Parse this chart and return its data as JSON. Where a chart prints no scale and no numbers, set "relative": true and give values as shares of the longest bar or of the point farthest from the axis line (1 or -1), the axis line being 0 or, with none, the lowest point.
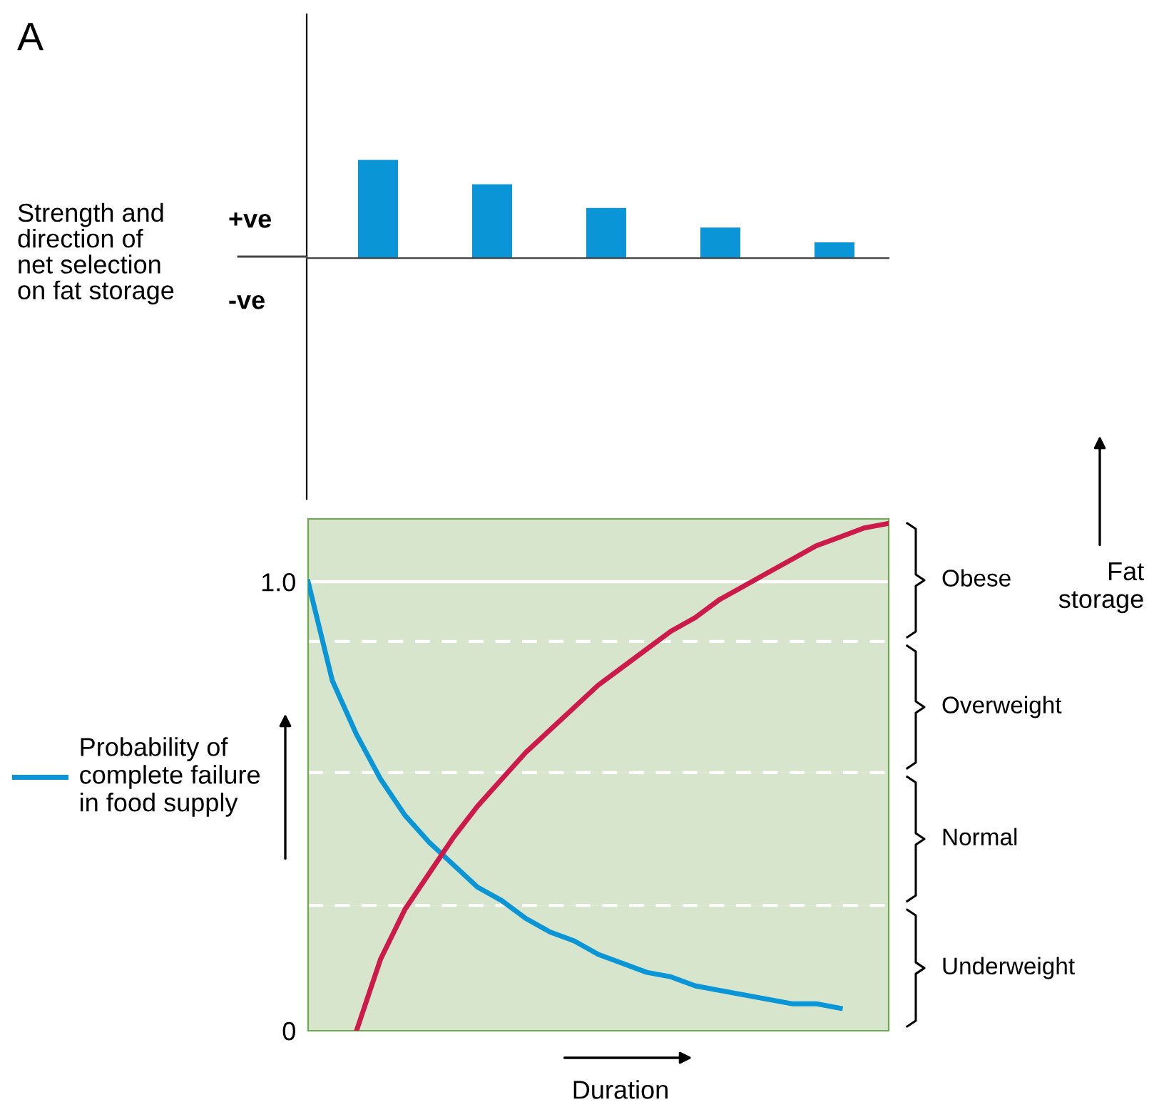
{
  "chart_data": [
    {
      "type": "bar",
      "relative": true,
      "ylabel": "Strength and\ndirection of\nnet selection\non fat storage",
      "annotations": [
        "A",
        "+ve",
        "-ve"
      ],
      "categories": [
        null,
        null,
        null,
        null,
        null
      ],
      "values": [
        1,
        0.75,
        0.51,
        0.31,
        0.16
      ],
      "color": "#0a96d6",
      "grid": false
    },
    {
      "type": "line",
      "xlabel": "Duration",
      "annotations": [
        "Fat\nstorage"
      ],
      "legend": "left",
      "categories": [
        null,
        null,
        null,
        null,
        null,
        null,
        null,
        null,
        null,
        null,
        null,
        null,
        null,
        null,
        null,
        null,
        null,
        null,
        null,
        null,
        null,
        null,
        null,
        null,
        null
      ],
      "ylim": [
        0,
        1.14
      ],
      "yticks": [
        0,
        {
          "value": 1,
          "label": "1.0"
        }
      ],
      "grid": false,
      "marker": "none",
      "line_style": "solid",
      "series": [
        {
          "name": "Probability of\ncomplete failure\nin food supply",
          "color": "#0a96d6",
          "values": [
            1.0,
            0.78,
            0.66,
            0.56,
            0.48,
            0.42,
            0.37,
            0.32,
            0.29,
            0.25,
            0.22,
            0.2,
            0.17,
            0.15,
            0.13,
            0.12,
            0.1,
            0.09,
            0.08,
            0.07,
            0.06,
            0.06,
            0.05,
            null,
            null
          ]
        },
        {
          "color": "#cc1a4a",
          "values": [
            null,
            null,
            0,
            0.16,
            0.27,
            0.35,
            0.43,
            0.5,
            0.56,
            0.62,
            0.67,
            0.72,
            0.77,
            0.81,
            0.85,
            0.89,
            0.92,
            0.96,
            0.99,
            1.02,
            1.05,
            1.08,
            1.1,
            1.12,
            1.13
          ]
        }
      ],
      "ref_lines": [
        {
          "axis": "y",
          "value": 1,
          "color": "#ffffff",
          "line_style": "solid"
        },
        {
          "axis": "y",
          "value": 0.867,
          "color": "#ffffff",
          "line_style": "dashed"
        },
        {
          "axis": "y",
          "value": 0.575,
          "color": "#ffffff",
          "line_style": "dashed"
        },
        {
          "axis": "y",
          "value": 0.279,
          "color": "#ffffff",
          "line_style": "dashed"
        }
      ],
      "bands": [
        {
          "axis": "y",
          "from": 0.867,
          "to": 1.14,
          "label": "Obese",
          "color": "#d8e5cd"
        },
        {
          "axis": "y",
          "from": 0.575,
          "to": 0.867,
          "label": "Overweight",
          "color": "#d8e5cd"
        },
        {
          "axis": "y",
          "from": 0.279,
          "to": 0.575,
          "label": "Normal",
          "color": "#d8e5cd"
        },
        {
          "axis": "y",
          "from": 0,
          "to": 0.279,
          "label": "Underweight",
          "color": "#d8e5cd"
        }
      ]
    }
  ]
}
